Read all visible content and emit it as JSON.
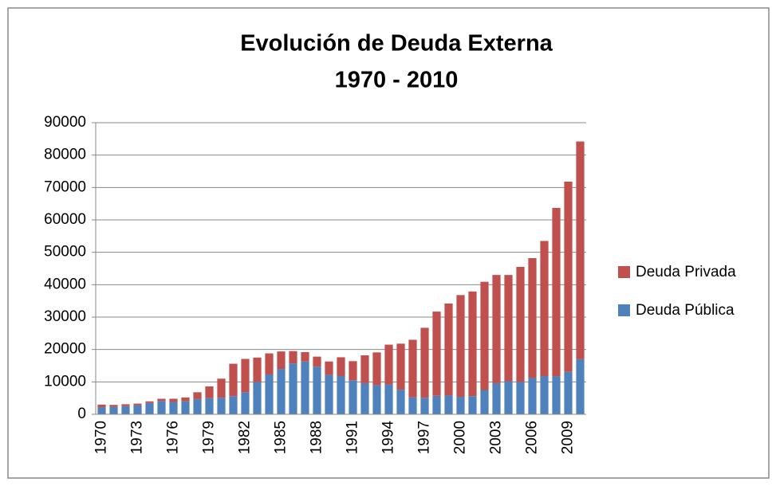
{
  "chart_data": {
    "type": "stacked_bar",
    "title": [
      "Evolución de Deuda Externa",
      "1970 - 2010"
    ],
    "categories": [
      "1970",
      null,
      null,
      "1973",
      null,
      null,
      "1976",
      null,
      null,
      "1979",
      null,
      null,
      "1982",
      null,
      null,
      "1985",
      null,
      null,
      "1988",
      null,
      null,
      "1991",
      null,
      null,
      "1994",
      null,
      null,
      "1997",
      null,
      null,
      "2000",
      null,
      null,
      "2003",
      null,
      null,
      "2006",
      null,
      null,
      "2009",
      null
    ],
    "series": [
      {
        "name": "Deuda Pública",
        "color": "#4f81bd",
        "values": [
          2200,
          2300,
          2500,
          2800,
          3500,
          4100,
          3800,
          4000,
          4700,
          5000,
          5100,
          5600,
          6800,
          10000,
          12300,
          14000,
          15700,
          16300,
          14700,
          12200,
          11800,
          10500,
          9600,
          9000,
          9200,
          7600,
          5200,
          5100,
          5700,
          5800,
          5400,
          5600,
          7500,
          9600,
          10200,
          10000,
          11200,
          11800,
          11700,
          13100,
          17000
        ]
      },
      {
        "name": "Deuda Privada",
        "color": "#c0504d",
        "values": [
          800,
          600,
          600,
          500,
          500,
          700,
          1000,
          1200,
          2100,
          3600,
          5900,
          10000,
          10300,
          7500,
          6500,
          5400,
          3800,
          2900,
          3100,
          4100,
          5800,
          5900,
          8600,
          10100,
          12300,
          14200,
          17800,
          21600,
          26000,
          28400,
          31400,
          32300,
          33400,
          33400,
          32800,
          35500,
          37000,
          41700,
          52000,
          58700,
          67200
        ]
      }
    ],
    "ylim": [
      0,
      90000
    ],
    "yticks": [
      0,
      10000,
      20000,
      30000,
      40000,
      50000,
      60000,
      70000,
      80000,
      90000
    ],
    "grid": true,
    "legend": "right"
  }
}
